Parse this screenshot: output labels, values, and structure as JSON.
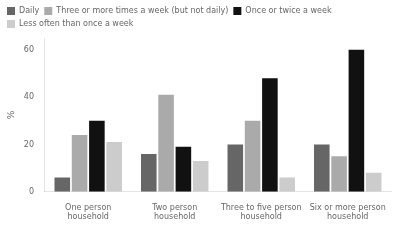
{
  "chart_data": {
    "type": "bar",
    "categories": [
      "One person\nhousehold",
      "Two person\nhousehold",
      "Three to five person\nhousehold",
      "Six or more person\nhousehold"
    ],
    "series": [
      {
        "name": "Daily",
        "color": "#666666",
        "values": [
          6,
          16,
          20,
          20
        ]
      },
      {
        "name": "Three or more times a week (but not daily)",
        "color": "#aaaaaa",
        "values": [
          24,
          41,
          30,
          15
        ]
      },
      {
        "name": "Once or twice a week",
        "color": "#111111",
        "values": [
          30,
          19,
          48,
          60
        ]
      },
      {
        "name": "Less often than once a week",
        "color": "#cccccc",
        "values": [
          21,
          13,
          6,
          8
        ]
      }
    ],
    "ylabel": "%",
    "ylim": [
      0,
      65
    ],
    "yticks": [
      0,
      20,
      40,
      60
    ],
    "grid": false,
    "legend": "upper left"
  }
}
